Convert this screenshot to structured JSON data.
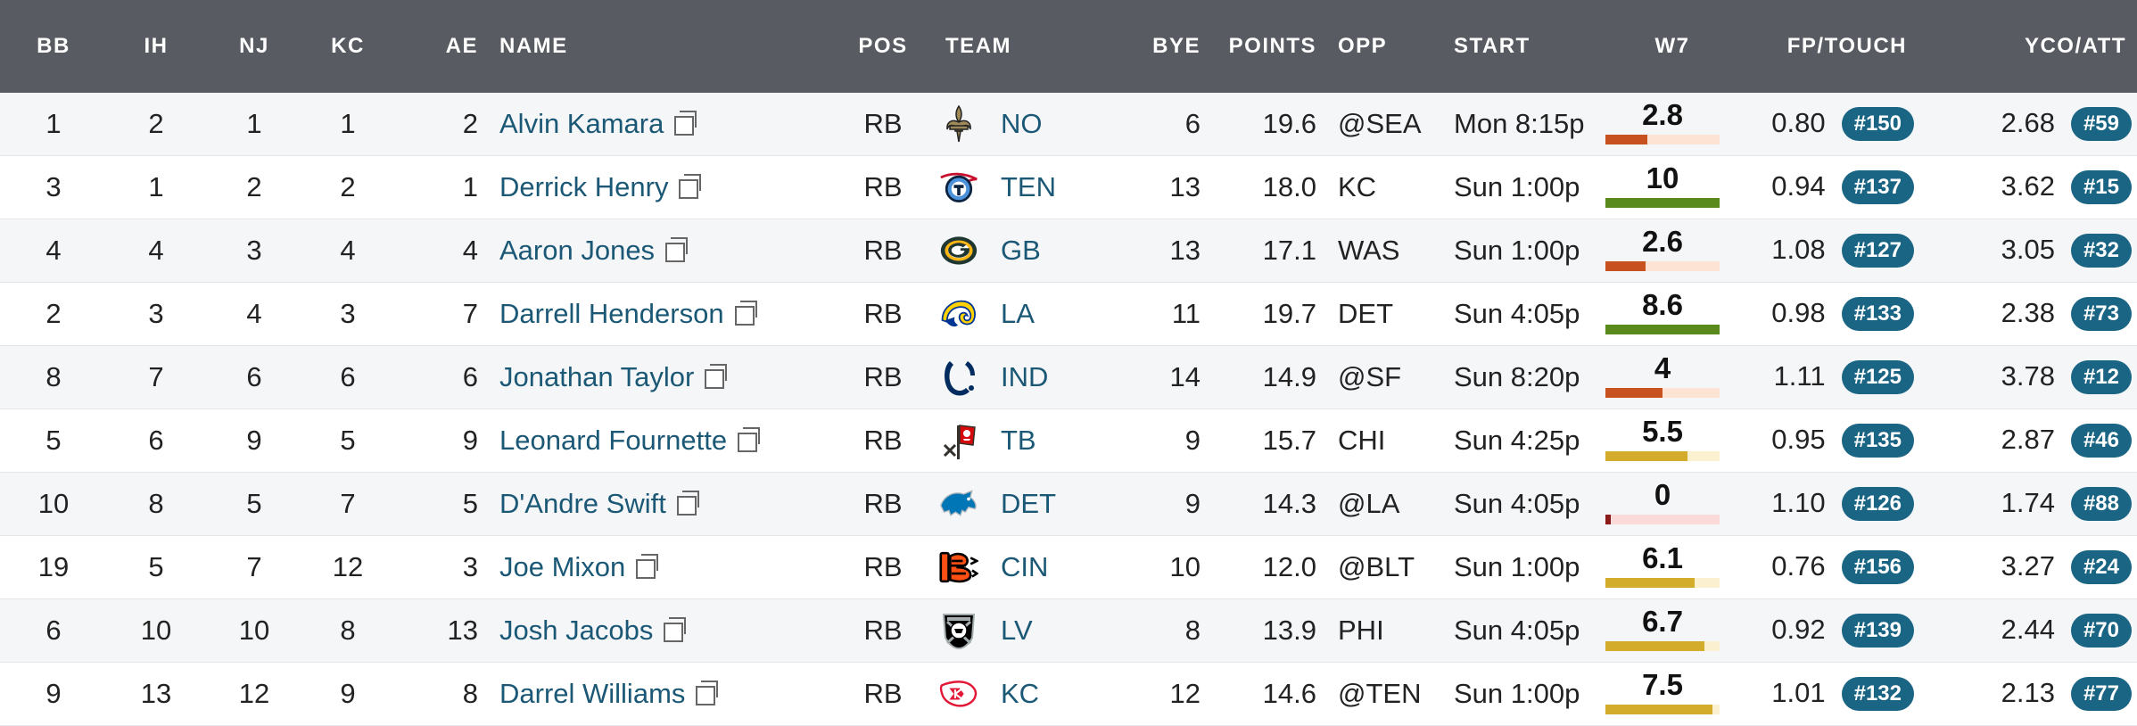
{
  "table": {
    "headers": {
      "bb": "BB",
      "ih": "IH",
      "nj": "NJ",
      "kc": "KC",
      "ae": "AE",
      "name": "NAME",
      "pos": "POS",
      "team": "TEAM",
      "bye": "BYE",
      "points": "POINTS",
      "opp": "OPP",
      "start": "START",
      "w7": "W7",
      "fp_touch": "FP/TOUCH",
      "yco_att": "YCO/ATT"
    },
    "rows": [
      {
        "bb": "1",
        "ih": "2",
        "nj": "1",
        "kc": "1",
        "ae": "2",
        "name": "Alvin Kamara",
        "pos": "RB",
        "team": "NO",
        "logo": "saints-logo",
        "bye": "6",
        "points": "19.6",
        "opp": "@SEA",
        "start": "Mon 8:15p",
        "w7": "2.8",
        "w7_fill": 0.37,
        "w7_color": "#c8521f",
        "w7_track": "#fde3d3",
        "fp_touch": "0.80",
        "fp_rank": "#150",
        "yco_att": "2.68",
        "yco_rank": "#59"
      },
      {
        "bb": "3",
        "ih": "1",
        "nj": "2",
        "kc": "2",
        "ae": "1",
        "name": "Derrick Henry",
        "pos": "RB",
        "team": "TEN",
        "logo": "titans-logo",
        "bye": "13",
        "points": "18.0",
        "opp": "KC",
        "start": "Sun 1:00p",
        "w7": "10",
        "w7_fill": 1.0,
        "w7_color": "#5a8a1c",
        "w7_track": "#e3eed3",
        "fp_touch": "0.94",
        "fp_rank": "#137",
        "yco_att": "3.62",
        "yco_rank": "#15"
      },
      {
        "bb": "4",
        "ih": "4",
        "nj": "3",
        "kc": "4",
        "ae": "4",
        "name": "Aaron Jones",
        "pos": "RB",
        "team": "GB",
        "logo": "packers-logo",
        "bye": "13",
        "points": "17.1",
        "opp": "WAS",
        "start": "Sun 1:00p",
        "w7": "2.6",
        "w7_fill": 0.35,
        "w7_color": "#c8521f",
        "w7_track": "#fde3d3",
        "fp_touch": "1.08",
        "fp_rank": "#127",
        "yco_att": "3.05",
        "yco_rank": "#32"
      },
      {
        "bb": "2",
        "ih": "3",
        "nj": "4",
        "kc": "3",
        "ae": "7",
        "name": "Darrell Henderson",
        "pos": "RB",
        "team": "LA",
        "logo": "rams-logo",
        "bye": "11",
        "points": "19.7",
        "opp": "DET",
        "start": "Sun 4:05p",
        "w7": "8.6",
        "w7_fill": 1.0,
        "w7_color": "#5a8a1c",
        "w7_track": "#e3eed3",
        "fp_touch": "0.98",
        "fp_rank": "#133",
        "yco_att": "2.38",
        "yco_rank": "#73"
      },
      {
        "bb": "8",
        "ih": "7",
        "nj": "6",
        "kc": "6",
        "ae": "6",
        "name": "Jonathan Taylor",
        "pos": "RB",
        "team": "IND",
        "logo": "colts-logo",
        "bye": "14",
        "points": "14.9",
        "opp": "@SF",
        "start": "Sun 8:20p",
        "w7": "4",
        "w7_fill": 0.5,
        "w7_color": "#c8521f",
        "w7_track": "#fde3d3",
        "fp_touch": "1.11",
        "fp_rank": "#125",
        "yco_att": "3.78",
        "yco_rank": "#12"
      },
      {
        "bb": "5",
        "ih": "6",
        "nj": "9",
        "kc": "5",
        "ae": "9",
        "name": "Leonard Fournette",
        "pos": "RB",
        "team": "TB",
        "logo": "buccaneers-logo",
        "bye": "9",
        "points": "15.7",
        "opp": "CHI",
        "start": "Sun 4:25p",
        "w7": "5.5",
        "w7_fill": 0.72,
        "w7_color": "#d3ac2b",
        "w7_track": "#fbf0cf",
        "fp_touch": "0.95",
        "fp_rank": "#135",
        "yco_att": "2.87",
        "yco_rank": "#46"
      },
      {
        "bb": "10",
        "ih": "8",
        "nj": "5",
        "kc": "7",
        "ae": "5",
        "name": "D'Andre Swift",
        "pos": "RB",
        "team": "DET",
        "logo": "lions-logo",
        "bye": "9",
        "points": "14.3",
        "opp": "@LA",
        "start": "Sun 4:05p",
        "w7": "0",
        "w7_fill": 0.05,
        "w7_color": "#8b1a1a",
        "w7_track": "#fbdada",
        "fp_touch": "1.10",
        "fp_rank": "#126",
        "yco_att": "1.74",
        "yco_rank": "#88"
      },
      {
        "bb": "19",
        "ih": "5",
        "nj": "7",
        "kc": "12",
        "ae": "3",
        "name": "Joe Mixon",
        "pos": "RB",
        "team": "CIN",
        "logo": "bengals-logo",
        "bye": "10",
        "points": "12.0",
        "opp": "@BLT",
        "start": "Sun 1:00p",
        "w7": "6.1",
        "w7_fill": 0.78,
        "w7_color": "#d3ac2b",
        "w7_track": "#fbf0cf",
        "fp_touch": "0.76",
        "fp_rank": "#156",
        "yco_att": "3.27",
        "yco_rank": "#24"
      },
      {
        "bb": "6",
        "ih": "10",
        "nj": "10",
        "kc": "8",
        "ae": "13",
        "name": "Josh Jacobs",
        "pos": "RB",
        "team": "LV",
        "logo": "raiders-logo",
        "bye": "8",
        "points": "13.9",
        "opp": "PHI",
        "start": "Sun 4:05p",
        "w7": "6.7",
        "w7_fill": 0.87,
        "w7_color": "#d3ac2b",
        "w7_track": "#fbf0cf",
        "fp_touch": "0.92",
        "fp_rank": "#139",
        "yco_att": "2.44",
        "yco_rank": "#70"
      },
      {
        "bb": "9",
        "ih": "13",
        "nj": "12",
        "kc": "9",
        "ae": "8",
        "name": "Darrel Williams",
        "pos": "RB",
        "team": "KC",
        "logo": "chiefs-logo",
        "bye": "12",
        "points": "14.6",
        "opp": "@TEN",
        "start": "Sun 1:00p",
        "w7": "7.5",
        "w7_fill": 0.94,
        "w7_color": "#d3ac2b",
        "w7_track": "#fbf0cf",
        "fp_touch": "1.01",
        "fp_rank": "#132",
        "yco_att": "2.13",
        "yco_rank": "#77"
      }
    ]
  }
}
